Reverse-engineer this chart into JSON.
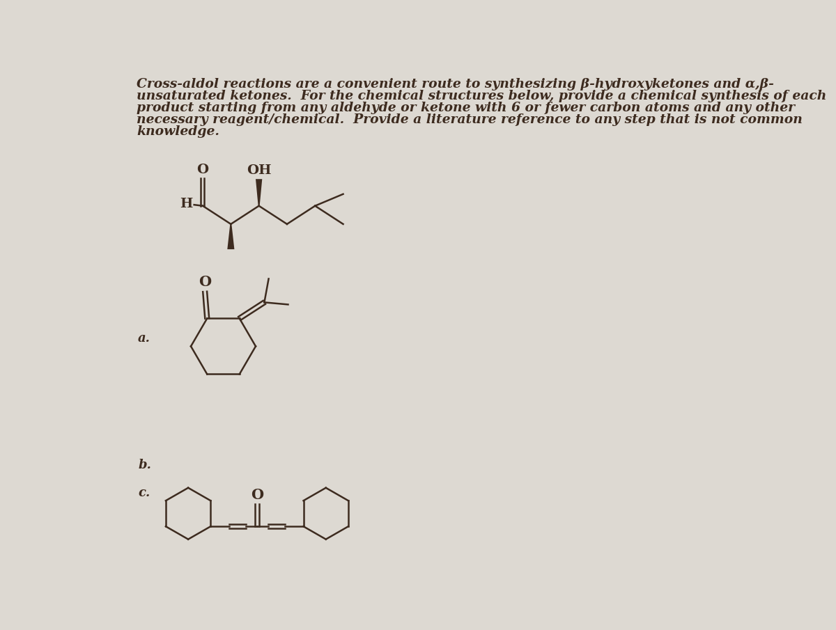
{
  "background_color": "#ddd9d2",
  "text_color": "#3d2b1f",
  "mol_color": "#3d2b1f",
  "title_line1": "Cross-aldol reactions are a convenient route to synthesizing β-hydroxyketones and α,β-",
  "title_line2": "unsaturated ketones.  For the chemical structures below, provide a chemical synthesis of each",
  "title_line3": "product starting from any aldehyde or ketone with 6 or fewer carbon atoms and any other",
  "title_line4": "necessary reagent/chemical.  Provide a literature reference to any step that is not common",
  "title_line5": "knowledge.",
  "label_a": "a.",
  "label_b": "b.",
  "label_c": "c.",
  "font_size_title": 13.5,
  "font_size_labels": 13,
  "font_size_atom": 14
}
